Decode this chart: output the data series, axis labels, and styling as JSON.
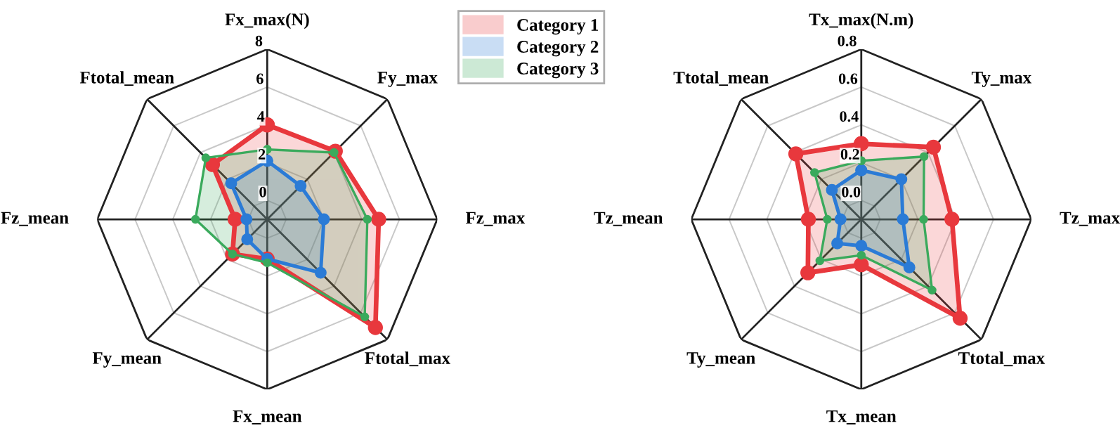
{
  "chart_data": [
    {
      "type": "radar",
      "categories": [
        "Fx_max(N)",
        "Fy_max",
        "Fz_max",
        "Ftotal_max",
        "Fx_mean",
        "Fy_mean",
        "Fz_mean",
        "Ftotal_mean"
      ],
      "ylim": [
        -1,
        8
      ],
      "yticks": [
        0,
        2,
        4,
        6,
        8
      ],
      "grid": true,
      "marker": "circle",
      "legend": "top right",
      "series": [
        {
          "name": "Category 1",
          "color": "#e8383d",
          "values": [
            4.0,
            4.1,
            4.9,
            7.1,
            1.1,
            1.6,
            0.7,
            3.1
          ]
        },
        {
          "name": "Category 2",
          "color": "#2b7bd6",
          "values": [
            2.1,
            1.5,
            2.0,
            3.0,
            1.1,
            0.5,
            0.1,
            1.7
          ]
        },
        {
          "name": "Category 3",
          "color": "#3aaa5c",
          "values": [
            2.7,
            4.0,
            4.3,
            6.3,
            1.3,
            1.6,
            2.8,
            3.6
          ]
        }
      ]
    },
    {
      "type": "radar",
      "categories": [
        "Tx_max(N.m)",
        "Ty_max",
        "Tz_max",
        "Ttotal_max",
        "Tx_mean",
        "Ty_mean",
        "Tz_mean",
        "Ttotal_mean"
      ],
      "ylim": [
        -0.1,
        0.8
      ],
      "yticks": [
        {
          "value": 0,
          "label": "0.0"
        },
        0.2,
        0.4,
        0.6,
        0.8
      ],
      "grid": true,
      "marker": "circle",
      "series": [
        {
          "color": "#e8383d",
          "values": [
            0.3,
            0.44,
            0.38,
            0.64,
            0.14,
            0.3,
            0.18,
            0.39
          ]
        },
        {
          "color": "#2b7bd6",
          "values": [
            0.16,
            0.2,
            0.12,
            0.26,
            0.04,
            0.08,
            0.01,
            0.12
          ]
        },
        {
          "color": "#3aaa5c",
          "values": [
            0.21,
            0.37,
            0.23,
            0.43,
            0.09,
            0.21,
            0.08,
            0.25
          ]
        }
      ]
    }
  ]
}
